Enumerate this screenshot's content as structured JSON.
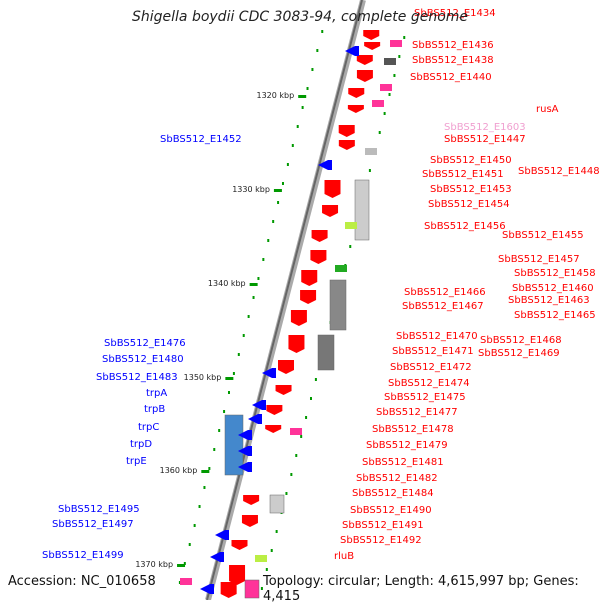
{
  "title": "Shigella boydii CDC 3083-94, complete genome",
  "footer": {
    "accession": "Accession: NC_010658",
    "topology": "Topology: circular; Length: 4,615,997 bp; Genes: 4,415"
  },
  "colors": {
    "forward_gene": "#ff0000",
    "reverse_gene": "#0000ff",
    "highlight_gene": "#f0a0d0",
    "backbone": "#777777",
    "tick": "#009900"
  },
  "scale": {
    "ticks": [
      {
        "label": "1320 kbp"
      },
      {
        "label": "1330 kbp"
      },
      {
        "label": "1340 kbp"
      },
      {
        "label": "1350 kbp"
      },
      {
        "label": "1360 kbp"
      },
      {
        "label": "1370 kbp"
      }
    ]
  },
  "forward_labels": [
    "SbBS512_E1434",
    "SbBS512_E1436",
    "SbBS512_E1438",
    "SbBS512_E1440",
    "rusA",
    "SbBS512_E1603",
    "SbBS512_E1447",
    "SbBS512_E1450",
    "SbBS512_E1448",
    "SbBS512_E1451",
    "SbBS512_E1453",
    "SbBS512_E1454",
    "SbBS512_E1456",
    "SbBS512_E1455",
    "SbBS512_E1457",
    "SbBS512_E1458",
    "SbBS512_E1460",
    "SbBS512_E1466",
    "SbBS512_E1463",
    "SbBS512_E1467",
    "SbBS512_E1465",
    "SbBS512_E1470",
    "SbBS512_E1468",
    "SbBS512_E1471",
    "SbBS512_E1469",
    "SbBS512_E1472",
    "SbBS512_E1474",
    "SbBS512_E1475",
    "SbBS512_E1477",
    "SbBS512_E1478",
    "SbBS512_E1479",
    "SbBS512_E1481",
    "SbBS512_E1482",
    "SbBS512_E1484",
    "SbBS512_E1490",
    "SbBS512_E1491",
    "SbBS512_E1492",
    "rluB"
  ],
  "reverse_labels": [
    "SbBS512_E1452",
    "SbBS512_E1476",
    "SbBS512_E1480",
    "SbBS512_E1483",
    "trpA",
    "trpB",
    "trpC",
    "trpD",
    "trpE",
    "SbBS512_E1495",
    "SbBS512_E1497",
    "SbBS512_E1499"
  ]
}
